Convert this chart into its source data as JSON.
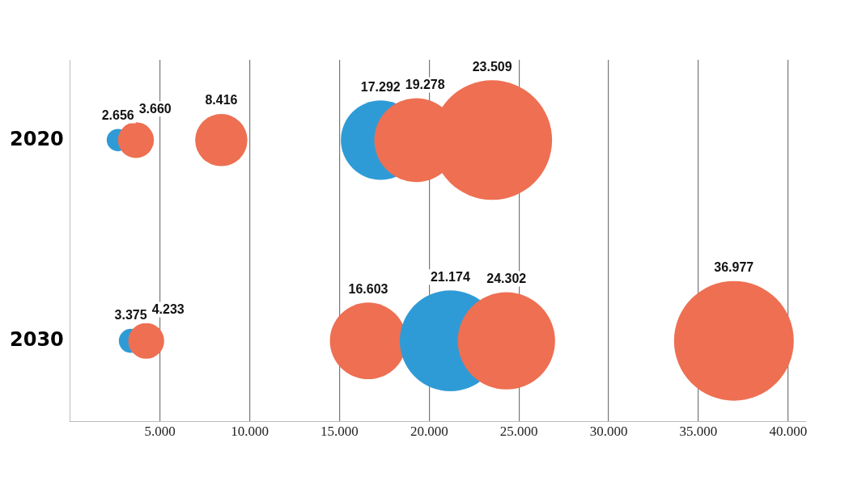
{
  "chart_data": {
    "type": "bubble",
    "x": [
      2656,
      3660,
      8416,
      17292,
      19278,
      23509,
      3375,
      4233,
      16603,
      21174,
      24302,
      36977
    ],
    "values": [
      2020,
      2020,
      2020,
      2020,
      2020,
      2020,
      2030,
      2030,
      2030,
      2030,
      2030,
      2030
    ],
    "sizes": [
      0.035,
      0.09,
      0.19,
      0.44,
      0.49,
      1,
      0.04,
      0.09,
      0.41,
      0.71,
      0.66,
      1
    ],
    "colors": [
      "#2f9bd6",
      "#ee6f52",
      "#ee6f52",
      "#2f9bd6",
      "#ee6f52",
      "#ee6f52",
      "#2f9bd6",
      "#ee6f52",
      "#ee6f52",
      "#2f9bd6",
      "#ee6f52",
      "#ee6f52"
    ],
    "annotations": [
      "2.656",
      "3.660",
      "8.416",
      "17.292",
      "19.278",
      "23.509",
      "3.375",
      "4.233",
      "16.603",
      "21.174",
      "24.302",
      "36.977"
    ],
    "xlim": [
      0,
      41000
    ],
    "xticks": [
      {
        "value": 5000,
        "label": "5.000"
      },
      {
        "value": 10000,
        "label": "10.000"
      },
      {
        "value": 15000,
        "label": "15.000"
      },
      {
        "value": 20000,
        "label": "20.000"
      },
      {
        "value": 25000,
        "label": "25.000"
      },
      {
        "value": 30000,
        "label": "30.000"
      },
      {
        "value": 35000,
        "label": "35.000"
      },
      {
        "value": 40000,
        "label": "40.000"
      }
    ],
    "ylim": [
      2034,
      2016
    ],
    "yticks": [
      2020,
      2030
    ],
    "grid": "x"
  }
}
